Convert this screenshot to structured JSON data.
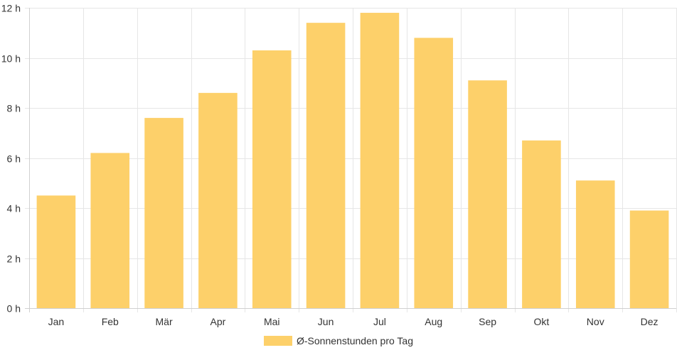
{
  "chart_data": {
    "type": "bar",
    "title": "",
    "xlabel": "",
    "ylabel": "",
    "categories": [
      "Jan",
      "Feb",
      "Mär",
      "Apr",
      "Mai",
      "Jun",
      "Jul",
      "Aug",
      "Sep",
      "Okt",
      "Nov",
      "Dez"
    ],
    "series": [
      {
        "name": "Ø-Sonnenstunden pro Tag",
        "values": [
          4.5,
          6.2,
          7.6,
          8.6,
          10.3,
          11.4,
          11.8,
          10.8,
          9.1,
          6.7,
          5.1,
          3.9
        ],
        "color": "#fdd06a"
      }
    ],
    "ylim": [
      0,
      12
    ],
    "yticks": [
      0,
      2,
      4,
      6,
      8,
      10,
      12
    ],
    "ytick_suffix": " h",
    "grid": true,
    "legend_position": "bottom"
  },
  "legend": {
    "label": "Ø-Sonnenstunden pro Tag",
    "color": "#fdd06a"
  }
}
